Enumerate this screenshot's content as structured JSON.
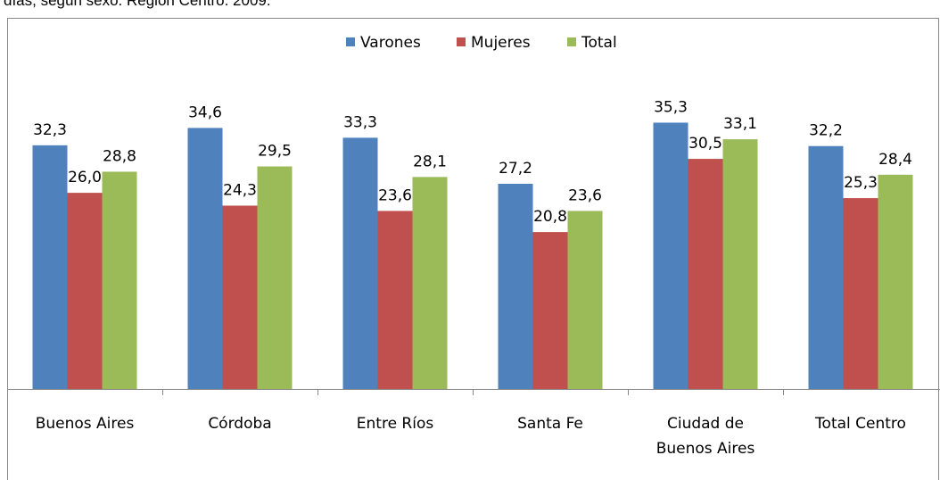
{
  "chart_data": {
    "type": "bar",
    "title": "días, según sexo. Región Centro. 2009.",
    "categories": [
      "Buenos Aires",
      "Córdoba",
      "Entre Ríos",
      "Santa Fe",
      "Ciudad de\nBuenos Aires",
      "Total Centro"
    ],
    "series": [
      {
        "name": "Varones",
        "color": "#4f81bd",
        "values": [
          32.3,
          34.6,
          33.3,
          27.2,
          35.3,
          32.2
        ],
        "value_labels": [
          "32,3",
          "34,6",
          "33,3",
          "27,2",
          "35,3",
          "32,2"
        ]
      },
      {
        "name": "Mujeres",
        "color": "#c0504d",
        "values": [
          26.0,
          24.3,
          23.6,
          20.8,
          30.5,
          25.3
        ],
        "value_labels": [
          "26,0",
          "24,3",
          "23,6",
          "20,8",
          "30,5",
          "25,3"
        ]
      },
      {
        "name": "Total",
        "color": "#9bbb59",
        "values": [
          28.8,
          29.5,
          28.1,
          23.6,
          33.1,
          28.4
        ],
        "value_labels": [
          "28,8",
          "29,5",
          "28,1",
          "23,6",
          "33,1",
          "28,4"
        ]
      }
    ],
    "ylim": [
      0,
      46
    ],
    "legend": "top"
  }
}
